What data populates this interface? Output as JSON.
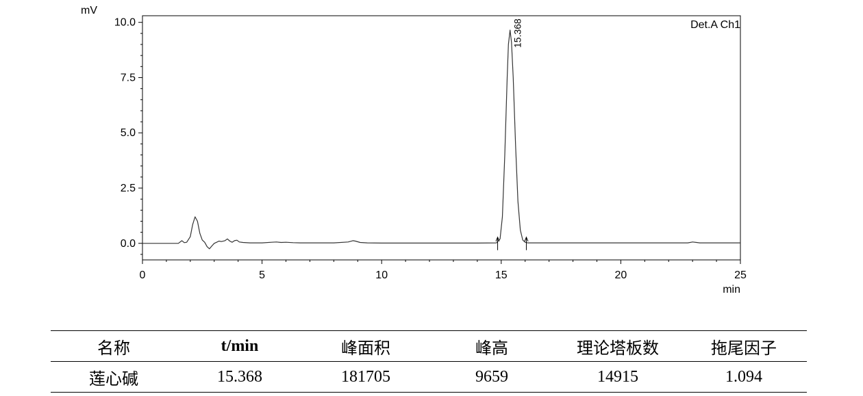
{
  "chart_data": {
    "type": "line",
    "y_unit_label": "mV",
    "x_unit_label": "min",
    "detector_label": "Det.A Ch1",
    "xlim": [
      0,
      25
    ],
    "ylim": [
      -0.75,
      10.3
    ],
    "x_ticks": [
      0,
      5,
      10,
      15,
      20,
      25
    ],
    "x_tick_labels": [
      "0",
      "5",
      "10",
      "15",
      "20",
      "25"
    ],
    "y_ticks": [
      0,
      2.5,
      5,
      7.5,
      10
    ],
    "y_tick_labels": [
      "0.0",
      "2.5",
      "5.0",
      "7.5",
      "10.0"
    ],
    "grid": false,
    "series": [
      {
        "x": [
          0,
          1.5,
          1.65,
          1.75,
          1.85,
          2.0,
          2.1,
          2.2,
          2.3,
          2.4,
          2.5,
          2.6,
          2.7,
          2.8,
          2.9,
          3.0,
          3.1,
          3.2,
          3.3,
          3.45,
          3.55,
          3.65,
          3.75,
          3.85,
          3.95,
          4.05,
          4.2,
          4.5,
          5.0,
          5.4,
          5.6,
          5.8,
          6.0,
          6.3,
          6.6,
          7.0,
          8.0,
          8.6,
          8.8,
          8.9,
          9.1,
          9.4,
          10.0,
          12.0,
          14.0,
          14.8,
          14.95,
          15.05,
          15.15,
          15.25,
          15.3,
          15.368,
          15.43,
          15.5,
          15.6,
          15.7,
          15.8,
          15.9,
          16.0,
          16.1,
          17.0,
          20.0,
          22.8,
          23.0,
          23.3,
          24.0,
          25.0
        ],
        "y": [
          0,
          0,
          0.12,
          0.03,
          0.05,
          0.3,
          0.85,
          1.2,
          1.0,
          0.45,
          0.15,
          0.05,
          -0.15,
          -0.25,
          -0.12,
          0.0,
          0.05,
          0.1,
          0.08,
          0.12,
          0.2,
          0.1,
          0.05,
          0.12,
          0.14,
          0.06,
          0.04,
          0.02,
          0.02,
          0.05,
          0.06,
          0.04,
          0.05,
          0.03,
          0.02,
          0.02,
          0.02,
          0.06,
          0.12,
          0.1,
          0.04,
          0.02,
          0.01,
          0.01,
          0.01,
          0.02,
          0.2,
          1.2,
          4.0,
          7.5,
          9.0,
          9.65,
          9.1,
          7.5,
          4.4,
          1.9,
          0.6,
          0.15,
          0.05,
          0.02,
          0.02,
          0.02,
          0.02,
          0.06,
          0.02,
          0.02,
          0.02
        ]
      }
    ],
    "peak_label": "15.368",
    "peak": {
      "x": 15.368,
      "y": 9.65
    },
    "baseline_markers": [
      14.85,
      16.05
    ]
  },
  "table": {
    "headers": [
      "名称",
      "t/min",
      "峰面积",
      "峰高",
      "理论塔板数",
      "拖尾因子"
    ],
    "rows": [
      [
        "莲心碱",
        "15.368",
        "181705",
        "9659",
        "14915",
        "1.094"
      ]
    ]
  }
}
